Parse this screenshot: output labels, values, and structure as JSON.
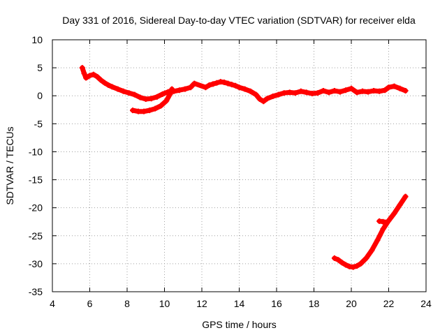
{
  "chart_data": {
    "type": "scatter",
    "title": "Day 331 of 2016, Sidereal Day-to-day VTEC variation (SDTVAR) for receiver elda",
    "xlabel": "GPS time / hours",
    "ylabel": "SDTVAR / TECUs",
    "xlim": [
      4,
      24
    ],
    "ylim": [
      -35,
      10
    ],
    "xticks": [
      4,
      6,
      8,
      10,
      12,
      14,
      16,
      18,
      20,
      22,
      24
    ],
    "yticks": [
      10,
      5,
      0,
      -5,
      -10,
      -15,
      -20,
      -25,
      -30,
      -35
    ],
    "grid": true,
    "legend": "none",
    "color": "#ff0000",
    "series": [
      {
        "name": "SDTVAR main track",
        "points": [
          [
            5.6,
            5.0
          ],
          [
            5.7,
            4.0
          ],
          [
            5.8,
            3.2
          ],
          [
            6.0,
            3.6
          ],
          [
            6.2,
            3.8
          ],
          [
            6.4,
            3.4
          ],
          [
            6.6,
            2.8
          ],
          [
            6.8,
            2.3
          ],
          [
            7.0,
            1.9
          ],
          [
            7.2,
            1.6
          ],
          [
            7.5,
            1.2
          ],
          [
            7.8,
            0.8
          ],
          [
            8.1,
            0.5
          ],
          [
            8.4,
            0.2
          ],
          [
            8.7,
            -0.3
          ],
          [
            9.0,
            -0.6
          ],
          [
            9.3,
            -0.5
          ],
          [
            9.6,
            -0.2
          ],
          [
            9.9,
            0.3
          ],
          [
            10.2,
            0.7
          ],
          [
            10.5,
            0.8
          ],
          [
            10.8,
            1.0
          ],
          [
            11.1,
            1.2
          ],
          [
            11.4,
            1.5
          ],
          [
            11.6,
            2.2
          ],
          [
            12.2,
            1.5
          ],
          [
            12.4,
            1.9
          ],
          [
            12.6,
            2.1
          ],
          [
            12.8,
            2.3
          ],
          [
            13.0,
            2.5
          ],
          [
            13.2,
            2.4
          ],
          [
            13.4,
            2.2
          ],
          [
            13.6,
            2.0
          ],
          [
            13.8,
            1.8
          ],
          [
            14.0,
            1.5
          ],
          [
            14.3,
            1.2
          ],
          [
            14.6,
            0.8
          ],
          [
            14.9,
            0.2
          ],
          [
            15.1,
            -0.6
          ],
          [
            15.3,
            -1.0
          ],
          [
            15.5,
            -0.5
          ],
          [
            15.8,
            -0.1
          ],
          [
            16.1,
            0.2
          ],
          [
            16.4,
            0.5
          ],
          [
            16.7,
            0.6
          ],
          [
            17.0,
            0.5
          ],
          [
            17.3,
            0.8
          ],
          [
            17.6,
            0.6
          ],
          [
            17.9,
            0.4
          ],
          [
            18.2,
            0.5
          ],
          [
            18.5,
            0.9
          ],
          [
            18.8,
            0.6
          ],
          [
            19.1,
            0.9
          ],
          [
            19.4,
            0.7
          ],
          [
            19.7,
            1.0
          ],
          [
            20.0,
            1.3
          ],
          [
            20.3,
            0.6
          ],
          [
            20.6,
            0.8
          ],
          [
            20.9,
            0.7
          ],
          [
            21.2,
            0.9
          ],
          [
            21.5,
            0.8
          ],
          [
            21.8,
            1.0
          ],
          [
            22.0,
            1.5
          ],
          [
            22.3,
            1.7
          ],
          [
            22.6,
            1.3
          ],
          [
            22.9,
            0.9
          ]
        ]
      },
      {
        "name": "SDTVAR branch 8-10.5h",
        "points": [
          [
            8.3,
            -2.6
          ],
          [
            8.6,
            -2.8
          ],
          [
            8.9,
            -2.8
          ],
          [
            9.2,
            -2.6
          ],
          [
            9.5,
            -2.3
          ],
          [
            9.8,
            -1.8
          ],
          [
            10.1,
            -0.9
          ],
          [
            10.3,
            0.3
          ],
          [
            10.4,
            1.2
          ]
        ]
      },
      {
        "name": "SDTVAR late track",
        "points": [
          [
            19.1,
            -29.0
          ],
          [
            19.3,
            -29.3
          ],
          [
            19.5,
            -29.8
          ],
          [
            19.7,
            -30.2
          ],
          [
            19.9,
            -30.5
          ],
          [
            20.1,
            -30.6
          ],
          [
            20.3,
            -30.4
          ],
          [
            20.5,
            -30.0
          ],
          [
            20.8,
            -29.0
          ],
          [
            21.1,
            -27.6
          ],
          [
            21.4,
            -25.8
          ],
          [
            21.7,
            -23.8
          ],
          [
            22.0,
            -22.3
          ],
          [
            22.3,
            -21.0
          ],
          [
            22.6,
            -19.5
          ],
          [
            22.9,
            -18.0
          ]
        ]
      },
      {
        "name": "SDTVAR late branch",
        "points": [
          [
            21.5,
            -22.4
          ],
          [
            21.7,
            -22.5
          ],
          [
            21.9,
            -22.6
          ]
        ]
      }
    ]
  }
}
